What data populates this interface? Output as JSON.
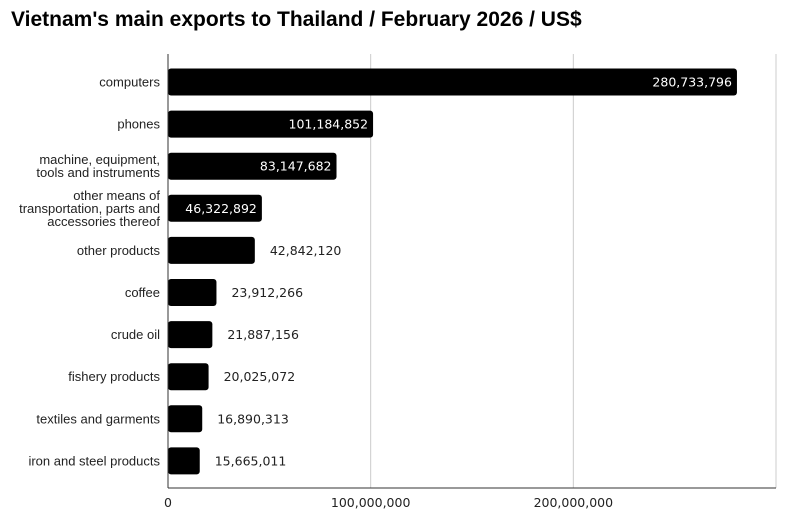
{
  "title": "Vietnam's main exports to Thailand / February 2026 / US$",
  "chart_data": {
    "type": "bar",
    "orientation": "horizontal",
    "title": "Vietnam's main exports to Thailand / February 2026 / US$",
    "categories": [
      "computers",
      "phones",
      "machine, equipment, tools and instruments",
      "other means of transportation, parts and accessories thereof",
      "other products",
      "coffee",
      "crude oil",
      "fishery products",
      "textiles and garments",
      "iron and steel products"
    ],
    "category_lines": [
      [
        "computers"
      ],
      [
        "phones"
      ],
      [
        "machine, equipment,",
        "tools and instruments"
      ],
      [
        "other means of",
        "transportation, parts and",
        "accessories thereof"
      ],
      [
        "other products"
      ],
      [
        "coffee"
      ],
      [
        "crude oil"
      ],
      [
        "fishery products"
      ],
      [
        "textiles and garments"
      ],
      [
        "iron and steel products"
      ]
    ],
    "values": [
      280733796,
      101184852,
      83147682,
      46322892,
      42842120,
      23912266,
      21887156,
      20025072,
      16890313,
      15665011
    ],
    "value_labels": [
      "280,733,796",
      "101,184,852",
      "83,147,682",
      "46,322,892",
      "42,842,120",
      "23,912,266",
      "21,887,156",
      "20,025,072",
      "16,890,313",
      "15,665,011"
    ],
    "xlim": [
      0,
      300000000
    ],
    "xticks": [
      0,
      100000000,
      200000000
    ],
    "xtick_labels": [
      "0",
      "100,000,000",
      "200,000,000"
    ],
    "grid": true,
    "bar_color": "#000000",
    "xlabel": "",
    "ylabel": ""
  }
}
